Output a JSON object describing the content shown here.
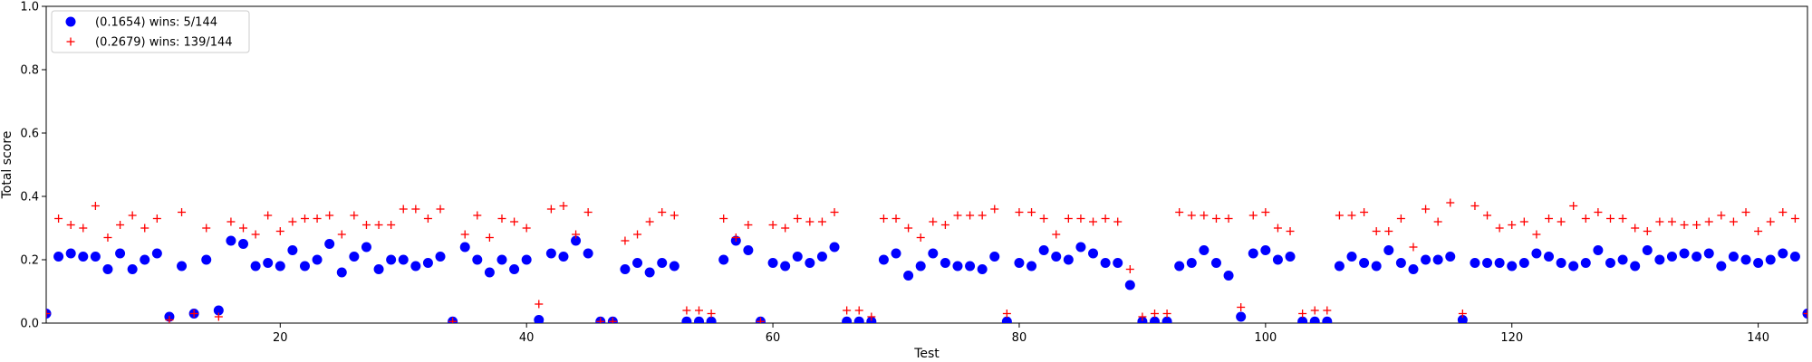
{
  "chart_data": {
    "type": "scatter",
    "xlabel": "Test",
    "ylabel": "Total score",
    "xlim": [
      1,
      144
    ],
    "ylim": [
      0,
      1.0
    ],
    "xticks": [
      20,
      40,
      60,
      80,
      100,
      120,
      140
    ],
    "yticks": [
      0.0,
      0.2,
      0.4,
      0.6,
      0.8,
      1.0
    ],
    "ytick_labels": [
      "0.0",
      "0.2",
      "0.4",
      "0.6",
      "0.8",
      "1.0"
    ],
    "grid": false,
    "legend_position": "top-left",
    "series": [
      {
        "name": "(0.1654) wins: 5/144",
        "marker": "circle",
        "color": "#0000ff",
        "x": [
          1,
          2,
          3,
          4,
          5,
          6,
          7,
          8,
          9,
          10,
          11,
          12,
          13,
          14,
          15,
          16,
          17,
          18,
          19,
          20,
          21,
          22,
          23,
          24,
          25,
          26,
          27,
          28,
          29,
          30,
          31,
          32,
          33,
          34,
          35,
          36,
          37,
          38,
          39,
          40,
          41,
          42,
          43,
          44,
          45,
          46,
          47,
          48,
          49,
          50,
          51,
          52,
          53,
          54,
          55,
          56,
          57,
          58,
          59,
          60,
          61,
          62,
          63,
          64,
          65,
          66,
          67,
          68,
          69,
          70,
          71,
          72,
          73,
          74,
          75,
          76,
          77,
          78,
          79,
          80,
          81,
          82,
          83,
          84,
          85,
          86,
          87,
          88,
          89,
          90,
          91,
          92,
          93,
          94,
          95,
          96,
          97,
          98,
          99,
          100,
          101,
          102,
          103,
          104,
          105,
          106,
          107,
          108,
          109,
          110,
          111,
          112,
          113,
          114,
          115,
          116,
          117,
          118,
          119,
          120,
          121,
          122,
          123,
          124,
          125,
          126,
          127,
          128,
          129,
          130,
          131,
          132,
          133,
          134,
          135,
          136,
          137,
          138,
          139,
          140,
          141,
          142,
          143,
          144
        ],
        "y": [
          0.03,
          0.21,
          0.22,
          0.21,
          0.21,
          0.17,
          0.22,
          0.17,
          0.2,
          0.22,
          0.02,
          0.18,
          0.03,
          0.2,
          0.04,
          0.26,
          0.25,
          0.18,
          0.19,
          0.18,
          0.23,
          0.18,
          0.2,
          0.25,
          0.16,
          0.21,
          0.24,
          0.17,
          0.2,
          0.2,
          0.18,
          0.19,
          0.21,
          0.005,
          0.24,
          0.2,
          0.16,
          0.2,
          0.17,
          0.2,
          0.01,
          0.22,
          0.21,
          0.26,
          0.22,
          0.005,
          0.005,
          0.17,
          0.19,
          0.16,
          0.19,
          0.18,
          0.005,
          0.005,
          0.005,
          0.2,
          0.26,
          0.23,
          0.005,
          0.19,
          0.18,
          0.21,
          0.19,
          0.21,
          0.24,
          0.005,
          0.005,
          0.005,
          0.2,
          0.22,
          0.15,
          0.18,
          0.22,
          0.19,
          0.18,
          0.18,
          0.17,
          0.21,
          0.005,
          0.19,
          0.18,
          0.23,
          0.21,
          0.2,
          0.24,
          0.22,
          0.19,
          0.19,
          0.12,
          0.005,
          0.005,
          0.005,
          0.18,
          0.19,
          0.23,
          0.19,
          0.15,
          0.02,
          0.22,
          0.23,
          0.2,
          0.21,
          0.005,
          0.005,
          0.005,
          0.18,
          0.21,
          0.19,
          0.18,
          0.23,
          0.19,
          0.17,
          0.2,
          0.2,
          0.21,
          0.01,
          0.19,
          0.19,
          0.19,
          0.18,
          0.19,
          0.22,
          0.21,
          0.19,
          0.18,
          0.19,
          0.23,
          0.19,
          0.2,
          0.18,
          0.23,
          0.2,
          0.21,
          0.22,
          0.21,
          0.22,
          0.18,
          0.21,
          0.2,
          0.19,
          0.2,
          0.22,
          0.21,
          0.03
        ]
      },
      {
        "name": "(0.2679) wins: 139/144",
        "marker": "plus",
        "color": "#ff0000",
        "x": [
          1,
          2,
          3,
          4,
          5,
          6,
          7,
          8,
          9,
          10,
          11,
          12,
          13,
          14,
          15,
          16,
          17,
          18,
          19,
          20,
          21,
          22,
          23,
          24,
          25,
          26,
          27,
          28,
          29,
          30,
          31,
          32,
          33,
          34,
          35,
          36,
          37,
          38,
          39,
          40,
          41,
          42,
          43,
          44,
          45,
          46,
          47,
          48,
          49,
          50,
          51,
          52,
          53,
          54,
          55,
          56,
          57,
          58,
          59,
          60,
          61,
          62,
          63,
          64,
          65,
          66,
          67,
          68,
          69,
          70,
          71,
          72,
          73,
          74,
          75,
          76,
          77,
          78,
          79,
          80,
          81,
          82,
          83,
          84,
          85,
          86,
          87,
          88,
          89,
          90,
          91,
          92,
          93,
          94,
          95,
          96,
          97,
          98,
          99,
          100,
          101,
          102,
          103,
          104,
          105,
          106,
          107,
          108,
          109,
          110,
          111,
          112,
          113,
          114,
          115,
          116,
          117,
          118,
          119,
          120,
          121,
          122,
          123,
          124,
          125,
          126,
          127,
          128,
          129,
          130,
          131,
          132,
          133,
          134,
          135,
          136,
          137,
          138,
          139,
          140,
          141,
          142,
          143,
          144
        ],
        "y": [
          0.03,
          0.33,
          0.31,
          0.3,
          0.37,
          0.27,
          0.31,
          0.34,
          0.3,
          0.33,
          0.01,
          0.35,
          0.03,
          0.3,
          0.02,
          0.32,
          0.3,
          0.28,
          0.34,
          0.29,
          0.32,
          0.33,
          0.33,
          0.34,
          0.28,
          0.34,
          0.31,
          0.31,
          0.31,
          0.36,
          0.36,
          0.33,
          0.36,
          0.005,
          0.28,
          0.34,
          0.27,
          0.33,
          0.32,
          0.3,
          0.06,
          0.36,
          0.37,
          0.28,
          0.35,
          0.005,
          0.005,
          0.26,
          0.28,
          0.32,
          0.35,
          0.34,
          0.04,
          0.04,
          0.03,
          0.33,
          0.27,
          0.31,
          0.005,
          0.31,
          0.3,
          0.33,
          0.32,
          0.32,
          0.35,
          0.04,
          0.04,
          0.02,
          0.33,
          0.33,
          0.3,
          0.27,
          0.32,
          0.31,
          0.34,
          0.34,
          0.34,
          0.36,
          0.03,
          0.35,
          0.35,
          0.33,
          0.28,
          0.33,
          0.33,
          0.32,
          0.33,
          0.32,
          0.17,
          0.02,
          0.03,
          0.03,
          0.35,
          0.34,
          0.34,
          0.33,
          0.33,
          0.05,
          0.34,
          0.35,
          0.3,
          0.29,
          0.03,
          0.04,
          0.04,
          0.34,
          0.34,
          0.35,
          0.29,
          0.29,
          0.33,
          0.24,
          0.36,
          0.32,
          0.38,
          0.03,
          0.37,
          0.34,
          0.3,
          0.31,
          0.32,
          0.28,
          0.33,
          0.32,
          0.37,
          0.33,
          0.35,
          0.33,
          0.33,
          0.3,
          0.29,
          0.32,
          0.32,
          0.31,
          0.31,
          0.32,
          0.34,
          0.32,
          0.35,
          0.29,
          0.32,
          0.35,
          0.33,
          0.03
        ]
      }
    ]
  }
}
